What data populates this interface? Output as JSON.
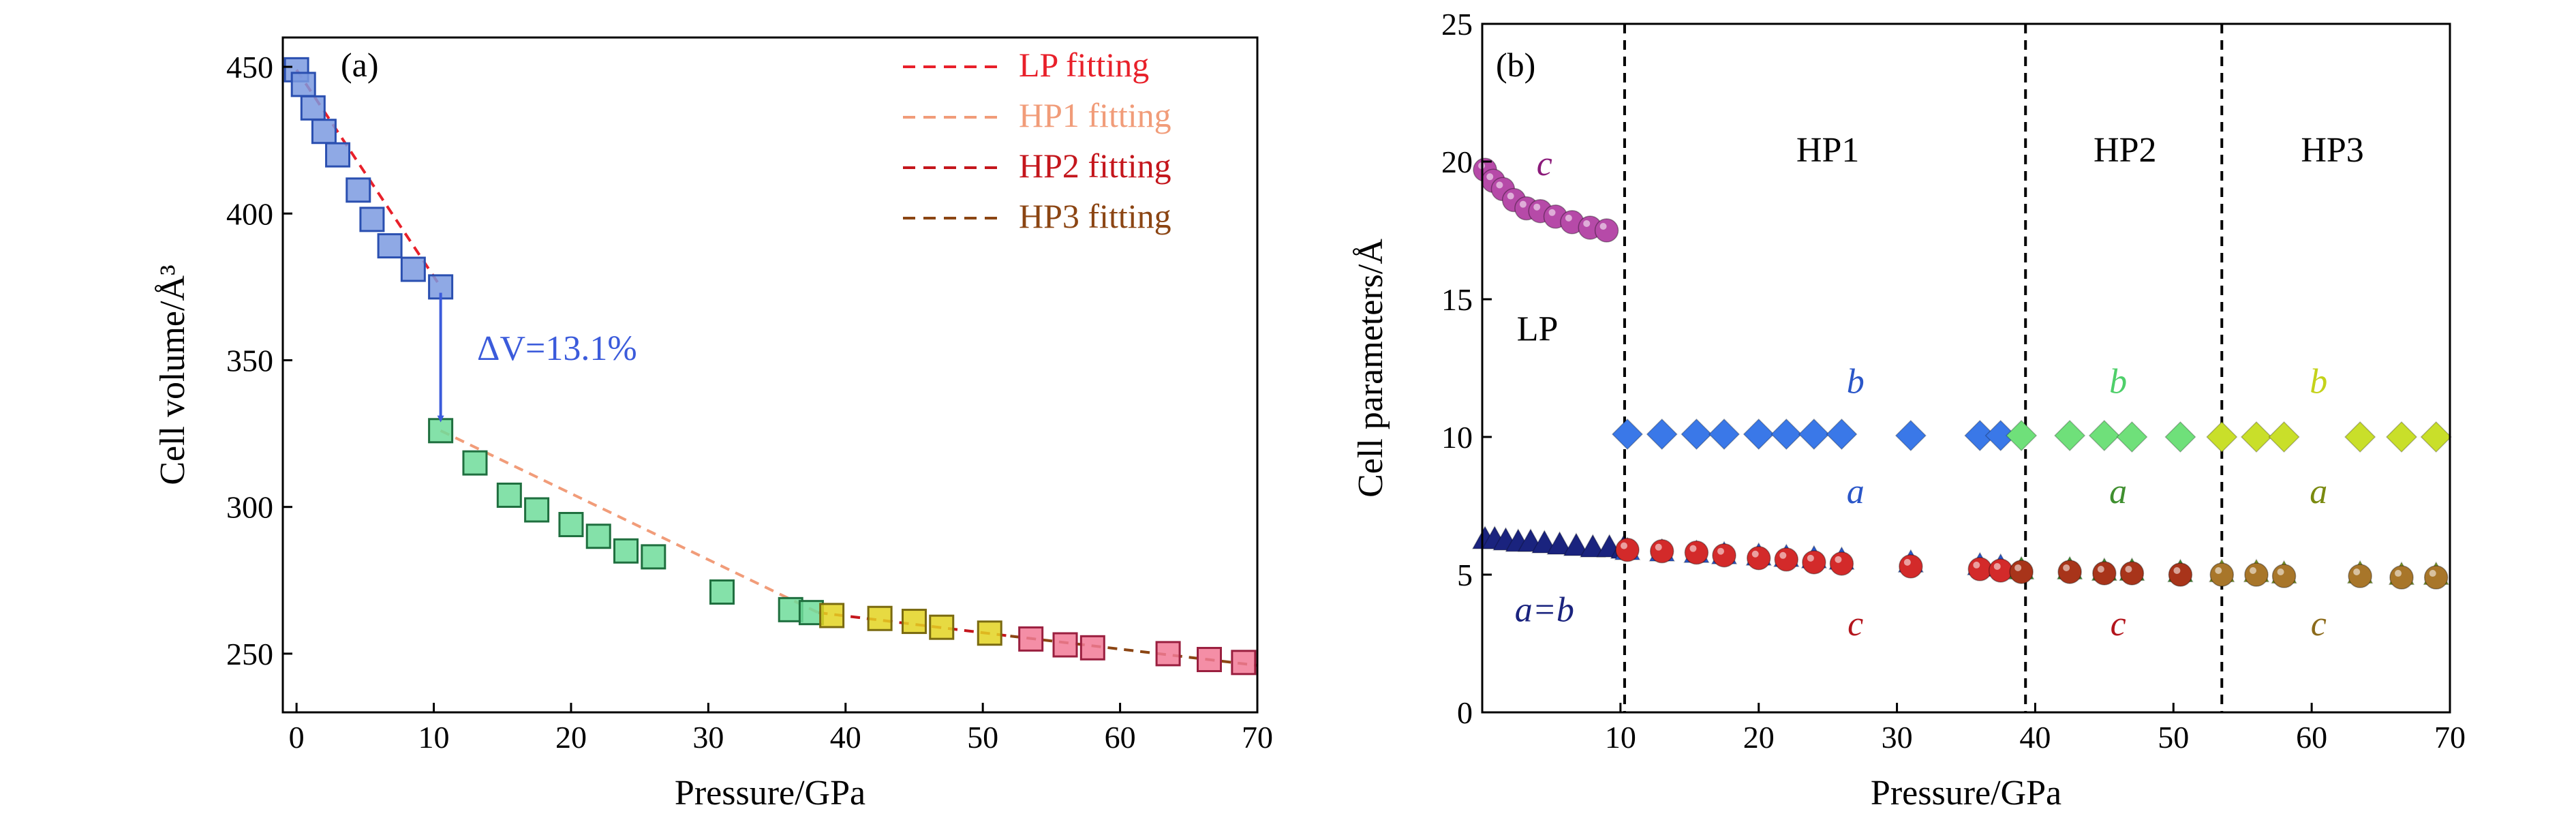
{
  "chart_data": [
    {
      "panel_label": "(a)",
      "type": "scatter",
      "xlabel": "Pressure/GPa",
      "ylabel": "Cell volume/Å³",
      "xlim": [
        -1,
        70
      ],
      "ylim": [
        230,
        460
      ],
      "xticks": [
        0,
        10,
        20,
        30,
        40,
        50,
        60,
        70
      ],
      "yticks": [
        250,
        300,
        350,
        400,
        450
      ],
      "grid": false,
      "legend_position": "top-right",
      "legend": [
        {
          "label": "LP fitting",
          "color": "#e8202a"
        },
        {
          "label": "HP1 fitting",
          "color": "#f19c79"
        },
        {
          "label": "HP2 fitting",
          "color": "#c4161c"
        },
        {
          "label": "HP3 fitting",
          "color": "#8b4513"
        }
      ],
      "annotation": {
        "label": "ΔV=13.1%",
        "color": "#3b5bdb",
        "arrow_from": [
          10.5,
          373
        ],
        "arrow_to": [
          10.5,
          330
        ]
      },
      "series": [
        {
          "phase": "LP",
          "marker": "square",
          "fill": "#7b9ae0",
          "edge": "#2a4fb0",
          "x": [
            0,
            0.5,
            1.2,
            2.0,
            3.0,
            4.5,
            5.5,
            6.8,
            8.5,
            10.5
          ],
          "y": [
            449,
            444,
            436,
            428,
            420,
            408,
            398,
            389,
            381,
            375
          ]
        },
        {
          "phase": "HP1",
          "marker": "square",
          "fill": "#6fdc9a",
          "edge": "#1f6f3f",
          "x": [
            10.5,
            13,
            15.5,
            17.5,
            20,
            22,
            24,
            26,
            31,
            36,
            37.5
          ],
          "y": [
            326,
            315,
            304,
            299,
            294,
            290,
            285,
            283,
            271,
            265,
            264
          ]
        },
        {
          "phase": "HP2",
          "marker": "square",
          "fill": "#e3d321",
          "edge": "#7a6a10",
          "x": [
            39,
            42.5,
            45,
            47,
            50.5
          ],
          "y": [
            263,
            262,
            261,
            259,
            257
          ]
        },
        {
          "phase": "HP3",
          "marker": "square",
          "fill": "#f27a97",
          "edge": "#9a1f3f",
          "x": [
            53.5,
            56,
            58,
            63.5,
            66.5,
            69
          ],
          "y": [
            255,
            253,
            252,
            250,
            248,
            247
          ]
        }
      ],
      "fits": [
        {
          "phase": "LP",
          "color": "#e8202a",
          "x": [
            0,
            10.5
          ],
          "y": [
            449,
            375
          ]
        },
        {
          "phase": "HP1",
          "color": "#f19c79",
          "x": [
            10.5,
            38
          ],
          "y": [
            326,
            264
          ]
        },
        {
          "phase": "HP2",
          "color": "#c4161c",
          "x": [
            38,
            52
          ],
          "y": [
            264,
            256
          ]
        },
        {
          "phase": "HP3",
          "color": "#8b4513",
          "x": [
            52,
            70
          ],
          "y": [
            256,
            246
          ]
        }
      ]
    },
    {
      "panel_label": "(b)",
      "type": "scatter",
      "xlabel": "Pressure/GPa",
      "ylabel": "Cell parameters/Å",
      "xlim": [
        0,
        70
      ],
      "ylim": [
        0,
        25
      ],
      "xticks": [
        10,
        20,
        30,
        40,
        50,
        60,
        70
      ],
      "yticks": [
        0,
        5,
        10,
        15,
        20,
        25
      ],
      "grid": false,
      "phase_boundaries": [
        10.3,
        39.3,
        53.5
      ],
      "region_labels": [
        {
          "text": "LP",
          "x": 4,
          "y": 13.5
        },
        {
          "text": "HP1",
          "x": 25,
          "y": 20
        },
        {
          "text": "HP2",
          "x": 46.5,
          "y": 20
        },
        {
          "text": "HP3",
          "x": 61.5,
          "y": 20
        }
      ],
      "param_labels": [
        {
          "text": "c",
          "x": 4.5,
          "y": 19.5,
          "color": "#8b1a7a"
        },
        {
          "text": "a=b",
          "x": 4.5,
          "y": 3.3,
          "color": "#1a237e"
        },
        {
          "text": "b",
          "x": 27,
          "y": 11.6,
          "color": "#2a56c8"
        },
        {
          "text": "a",
          "x": 27,
          "y": 7.6,
          "color": "#2a56c8"
        },
        {
          "text": "c",
          "x": 27,
          "y": 2.8,
          "color": "#b3151c"
        },
        {
          "text": "b",
          "x": 46,
          "y": 11.6,
          "color": "#4fcf6a"
        },
        {
          "text": "a",
          "x": 46,
          "y": 7.6,
          "color": "#3f8f2f"
        },
        {
          "text": "c",
          "x": 46,
          "y": 2.8,
          "color": "#b3151c"
        },
        {
          "text": "b",
          "x": 60.5,
          "y": 11.6,
          "color": "#c4d21a"
        },
        {
          "text": "a",
          "x": 60.5,
          "y": 7.6,
          "color": "#7a8a10"
        },
        {
          "text": "c",
          "x": 60.5,
          "y": 2.8,
          "color": "#8b6a1a"
        }
      ],
      "series": [
        {
          "phase": "LP",
          "param": "c",
          "marker": "sphere",
          "color": "#b64aa8",
          "x": [
            0.2,
            0.8,
            1.5,
            2.3,
            3.2,
            4.2,
            5.3,
            6.5,
            7.8,
            9.0
          ],
          "y": [
            19.7,
            19.3,
            19.0,
            18.6,
            18.3,
            18.2,
            18.0,
            17.8,
            17.6,
            17.5
          ]
        },
        {
          "phase": "LP",
          "param": "a=b",
          "marker": "triangle",
          "color": "#1a237e",
          "x": [
            0.2,
            0.9,
            1.7,
            2.6,
            3.5,
            4.5,
            5.6,
            6.8,
            8.0,
            9.2,
            10.2
          ],
          "y": [
            6.3,
            6.3,
            6.25,
            6.2,
            6.2,
            6.15,
            6.1,
            6.05,
            6.0,
            6.0,
            5.95
          ]
        },
        {
          "phase": "HP1",
          "param": "b",
          "marker": "diamond",
          "color": "#3a78e8",
          "x": [
            10.5,
            13,
            15.5,
            17.5,
            20,
            22,
            24,
            26,
            31,
            36,
            37.5
          ],
          "y": [
            10.1,
            10.1,
            10.1,
            10.1,
            10.1,
            10.1,
            10.1,
            10.1,
            10.05,
            10.05,
            10.05
          ]
        },
        {
          "phase": "HP1",
          "param": "a",
          "marker": "triangle",
          "color": "#2a56c8",
          "x": [
            10.5,
            13,
            15.5,
            17.5,
            20,
            22,
            24,
            26,
            31,
            36,
            37.5
          ],
          "y": [
            5.9,
            5.85,
            5.8,
            5.75,
            5.7,
            5.65,
            5.6,
            5.55,
            5.45,
            5.35,
            5.3
          ]
        },
        {
          "phase": "HP1",
          "param": "c",
          "marker": "sphere",
          "color": "#d32a2a",
          "x": [
            10.5,
            13,
            15.5,
            17.5,
            20,
            22,
            24,
            26,
            31,
            36,
            37.5
          ],
          "y": [
            5.9,
            5.85,
            5.8,
            5.7,
            5.6,
            5.55,
            5.45,
            5.4,
            5.3,
            5.2,
            5.15
          ]
        },
        {
          "phase": "HP2",
          "param": "b",
          "marker": "diamond",
          "color": "#6fe07a",
          "x": [
            39,
            42.5,
            45,
            47,
            50.5
          ],
          "y": [
            10.05,
            10.05,
            10.05,
            10.0,
            10.0
          ]
        },
        {
          "phase": "HP2",
          "param": "a",
          "marker": "triangle",
          "color": "#3f8f2f",
          "x": [
            39,
            42.5,
            45,
            47,
            50.5
          ],
          "y": [
            5.2,
            5.2,
            5.15,
            5.15,
            5.1
          ]
        },
        {
          "phase": "HP2",
          "param": "c",
          "marker": "sphere",
          "color": "#a8341a",
          "x": [
            39,
            42.5,
            45,
            47,
            50.5
          ],
          "y": [
            5.1,
            5.1,
            5.05,
            5.05,
            5.0
          ]
        },
        {
          "phase": "HP3",
          "param": "b",
          "marker": "diamond",
          "color": "#c9df2a",
          "x": [
            53.5,
            56,
            58,
            63.5,
            66.5,
            69
          ],
          "y": [
            10.0,
            10.0,
            10.0,
            10.0,
            10.0,
            10.0
          ]
        },
        {
          "phase": "HP3",
          "param": "a",
          "marker": "triangle",
          "color": "#7a9a20",
          "x": [
            53.5,
            56,
            58,
            63.5,
            66.5,
            69
          ],
          "y": [
            5.1,
            5.1,
            5.05,
            5.05,
            5.0,
            5.0
          ]
        },
        {
          "phase": "HP3",
          "param": "c",
          "marker": "sphere",
          "color": "#a8762a",
          "x": [
            53.5,
            56,
            58,
            63.5,
            66.5,
            69
          ],
          "y": [
            5.0,
            5.0,
            4.95,
            4.95,
            4.9,
            4.9
          ]
        }
      ]
    }
  ]
}
